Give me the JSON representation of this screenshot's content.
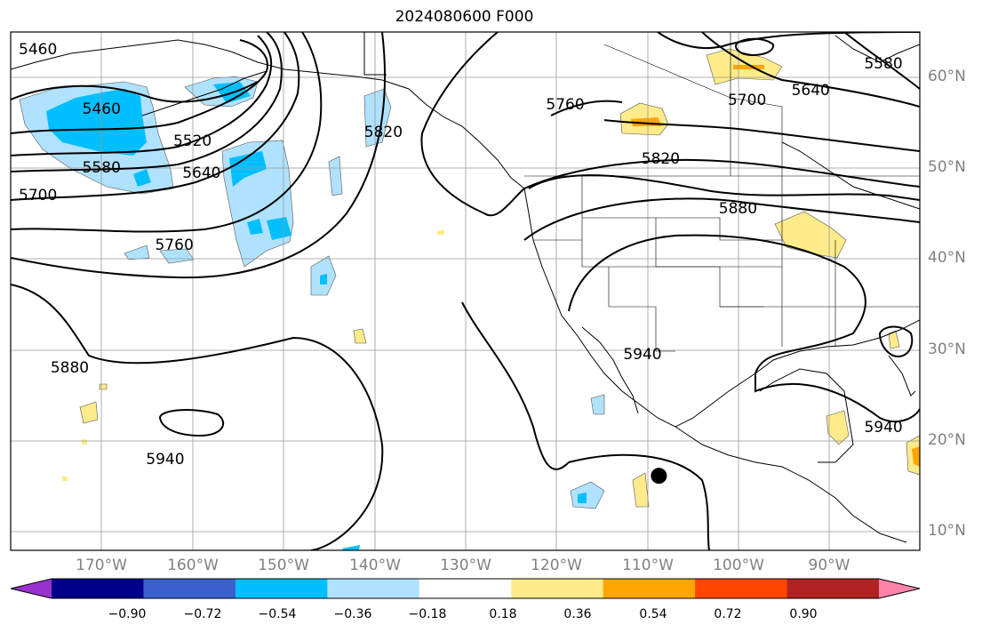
{
  "title": "2024080600 F000",
  "map": {
    "projection": "PlateCarree",
    "extent_lon": [
      -180,
      -80
    ],
    "extent_lat": [
      8,
      65
    ],
    "gridlines": true,
    "lat_labels": [
      "60°N",
      "50°N",
      "40°N",
      "30°N",
      "20°N",
      "10°N"
    ],
    "lat_values": [
      60,
      50,
      40,
      30,
      20,
      10
    ],
    "lon_labels": [
      "170°W",
      "160°W",
      "150°W",
      "140°W",
      "130°W",
      "120°W",
      "110°W",
      "100°W",
      "90°W"
    ],
    "lon_values": [
      -170,
      -160,
      -150,
      -140,
      -130,
      -120,
      -110,
      -100,
      -90
    ],
    "contour_labels": [
      {
        "text": "5460",
        "lon": -177,
        "lat": 63
      },
      {
        "text": "5460",
        "lon": -170,
        "lat": 56.5
      },
      {
        "text": "5520",
        "lon": -160,
        "lat": 53
      },
      {
        "text": "5580",
        "lon": -170,
        "lat": 50
      },
      {
        "text": "5640",
        "lon": -159,
        "lat": 49.5
      },
      {
        "text": "5700",
        "lon": -177,
        "lat": 47
      },
      {
        "text": "5760",
        "lon": -162,
        "lat": 41.5
      },
      {
        "text": "5820",
        "lon": -139,
        "lat": 54
      },
      {
        "text": "5760",
        "lon": -119,
        "lat": 57
      },
      {
        "text": "5820",
        "lon": -108.5,
        "lat": 51
      },
      {
        "text": "5700",
        "lon": -99,
        "lat": 57.5
      },
      {
        "text": "5640",
        "lon": -92,
        "lat": 58.5
      },
      {
        "text": "5580",
        "lon": -84,
        "lat": 61.5
      },
      {
        "text": "5880",
        "lon": -100,
        "lat": 45.5
      },
      {
        "text": "5880",
        "lon": -173.5,
        "lat": 28
      },
      {
        "text": "5940",
        "lon": -110.5,
        "lat": 29.5
      },
      {
        "text": "5940",
        "lon": -163,
        "lat": 18
      },
      {
        "text": "5940",
        "lon": -84,
        "lat": 21.5
      }
    ],
    "storm_marker": {
      "lon": -108.7,
      "lat": 16.2
    }
  },
  "colorbar": {
    "tick_labels": [
      "−0.90",
      "−0.72",
      "−0.54",
      "−0.36",
      "−0.18",
      "0.18",
      "0.36",
      "0.54",
      "0.72",
      "0.90"
    ],
    "colors": [
      "#9932cc",
      "#00008b",
      "#3a5fcd",
      "#00bfff",
      "#b0e2ff",
      "#ffffff",
      "#ffeb8a",
      "#ffa500",
      "#ff4500",
      "#b22222",
      "#ff82ab"
    ]
  }
}
